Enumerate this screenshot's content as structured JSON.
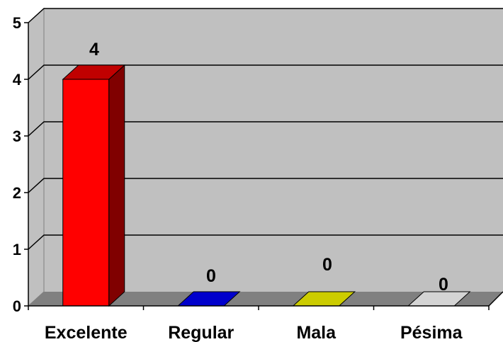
{
  "chart_data": {
    "type": "bar",
    "categories": [
      "Excelente",
      "Regular",
      "Mala",
      "Pésima"
    ],
    "values": [
      4,
      0,
      0,
      0
    ],
    "data_labels": [
      "4",
      "0",
      "0",
      "0"
    ],
    "ylim": [
      0,
      5
    ],
    "yticks": [
      "0",
      "1",
      "2",
      "3",
      "4",
      "5"
    ],
    "grid": true,
    "legend": "none",
    "colors": {
      "wall": "#c0c0c0",
      "floor": "#808080",
      "gridline": "#000000",
      "bars": [
        {
          "front": "#ff0000",
          "side": "#800000",
          "top": "#c00000"
        },
        {
          "front": "#0000cc",
          "side": "#000080",
          "top": "#0000cc"
        },
        {
          "front": "#cccc00",
          "side": "#808000",
          "top": "#cccc00"
        },
        {
          "front": "#c0c0c0",
          "side": "#808080",
          "top": "#d4d4d4"
        }
      ]
    }
  }
}
